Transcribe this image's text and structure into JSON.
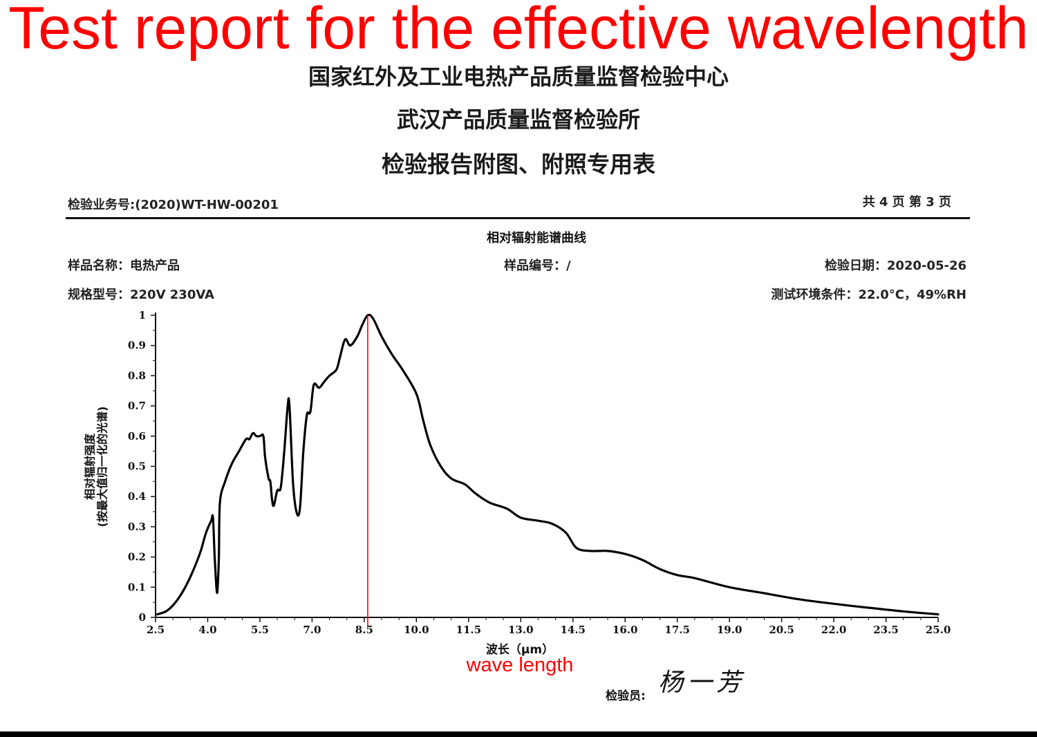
{
  "overlay_title": "Test report for the effective wavelength",
  "header": {
    "org_line1": "国家红外及工业电热产品质量监督检验中心",
    "org_line2": "武汉产品质量监督检验所",
    "org_line3": "检验报告附图、附照专用表"
  },
  "report": {
    "business_no": "检验业务号:(2020)WT-HW-00201",
    "page_info": "共 4 页 第 3 页",
    "sample_name": "样品名称：电热产品",
    "sample_no": "样品编号：/",
    "test_date": "检验日期：2020-05-26",
    "spec_model": "规格型号：220V 230VA",
    "environment": "测试环境条件：22.0°C，49%RH",
    "inspector_label": "检验员:",
    "signature": "杨一芳"
  },
  "annotation": {
    "wave_length": "wave length",
    "marker_x": 8.6,
    "marker_color": "#ff0000"
  },
  "colors": {
    "overlay": "#ff0000",
    "curve": "#000000"
  },
  "chart_data": {
    "type": "line",
    "title": "相对辐射能谱曲线",
    "xlabel": "波长（μm）",
    "ylabel_line1": "相对辐射强度",
    "ylabel_line2": "(按最大值归一化的光谱)",
    "xlim": [
      2.5,
      25.0
    ],
    "ylim": [
      0,
      1
    ],
    "xticks": [
      "2.5",
      "4.0",
      "5.5",
      "7.0",
      "8.5",
      "10.0",
      "11.5",
      "13.0",
      "14.5",
      "16.0",
      "17.5",
      "19.0",
      "20.5",
      "22.0",
      "23.5",
      "25.0"
    ],
    "yticks": [
      "0",
      "0.1",
      "0.2",
      "0.3",
      "0.4",
      "0.5",
      "0.6",
      "0.7",
      "0.8",
      "0.9",
      "1"
    ],
    "grid": false,
    "series": [
      {
        "points": [
          [
            2.55,
            0.01
          ],
          [
            2.8,
            0.02
          ],
          [
            3.0,
            0.04
          ],
          [
            3.2,
            0.07
          ],
          [
            3.4,
            0.11
          ],
          [
            3.6,
            0.16
          ],
          [
            3.8,
            0.22
          ],
          [
            3.95,
            0.28
          ],
          [
            4.1,
            0.32
          ],
          [
            4.15,
            0.33
          ],
          [
            4.2,
            0.2
          ],
          [
            4.25,
            0.1
          ],
          [
            4.28,
            0.09
          ],
          [
            4.32,
            0.2
          ],
          [
            4.35,
            0.38
          ],
          [
            4.5,
            0.45
          ],
          [
            4.7,
            0.51
          ],
          [
            4.9,
            0.55
          ],
          [
            5.1,
            0.59
          ],
          [
            5.2,
            0.59
          ],
          [
            5.3,
            0.61
          ],
          [
            5.4,
            0.6
          ],
          [
            5.5,
            0.6
          ],
          [
            5.6,
            0.6
          ],
          [
            5.65,
            0.53
          ],
          [
            5.75,
            0.46
          ],
          [
            5.8,
            0.45
          ],
          [
            5.85,
            0.39
          ],
          [
            5.9,
            0.37
          ],
          [
            6.0,
            0.42
          ],
          [
            6.1,
            0.43
          ],
          [
            6.2,
            0.55
          ],
          [
            6.3,
            0.7
          ],
          [
            6.35,
            0.7
          ],
          [
            6.45,
            0.45
          ],
          [
            6.55,
            0.35
          ],
          [
            6.65,
            0.36
          ],
          [
            6.75,
            0.55
          ],
          [
            6.85,
            0.67
          ],
          [
            6.95,
            0.68
          ],
          [
            7.05,
            0.77
          ],
          [
            7.2,
            0.76
          ],
          [
            7.35,
            0.78
          ],
          [
            7.5,
            0.8
          ],
          [
            7.7,
            0.82
          ],
          [
            7.8,
            0.86
          ],
          [
            7.95,
            0.92
          ],
          [
            8.1,
            0.9
          ],
          [
            8.3,
            0.93
          ],
          [
            8.45,
            0.97
          ],
          [
            8.6,
            1.0
          ],
          [
            8.75,
            0.99
          ],
          [
            9.0,
            0.93
          ],
          [
            9.3,
            0.87
          ],
          [
            9.6,
            0.82
          ],
          [
            10.0,
            0.74
          ],
          [
            10.2,
            0.65
          ],
          [
            10.4,
            0.57
          ],
          [
            10.7,
            0.5
          ],
          [
            11.0,
            0.46
          ],
          [
            11.4,
            0.44
          ],
          [
            11.7,
            0.41
          ],
          [
            12.1,
            0.38
          ],
          [
            12.6,
            0.36
          ],
          [
            13.0,
            0.33
          ],
          [
            13.5,
            0.32
          ],
          [
            13.9,
            0.31
          ],
          [
            14.3,
            0.28
          ],
          [
            14.6,
            0.23
          ],
          [
            15.0,
            0.22
          ],
          [
            15.5,
            0.22
          ],
          [
            16.0,
            0.21
          ],
          [
            16.5,
            0.19
          ],
          [
            17.0,
            0.16
          ],
          [
            17.5,
            0.14
          ],
          [
            18.0,
            0.13
          ],
          [
            19.0,
            0.1
          ],
          [
            20.0,
            0.08
          ],
          [
            21.0,
            0.06
          ],
          [
            22.0,
            0.045
          ],
          [
            23.0,
            0.032
          ],
          [
            24.0,
            0.02
          ],
          [
            25.0,
            0.01
          ]
        ]
      }
    ]
  }
}
